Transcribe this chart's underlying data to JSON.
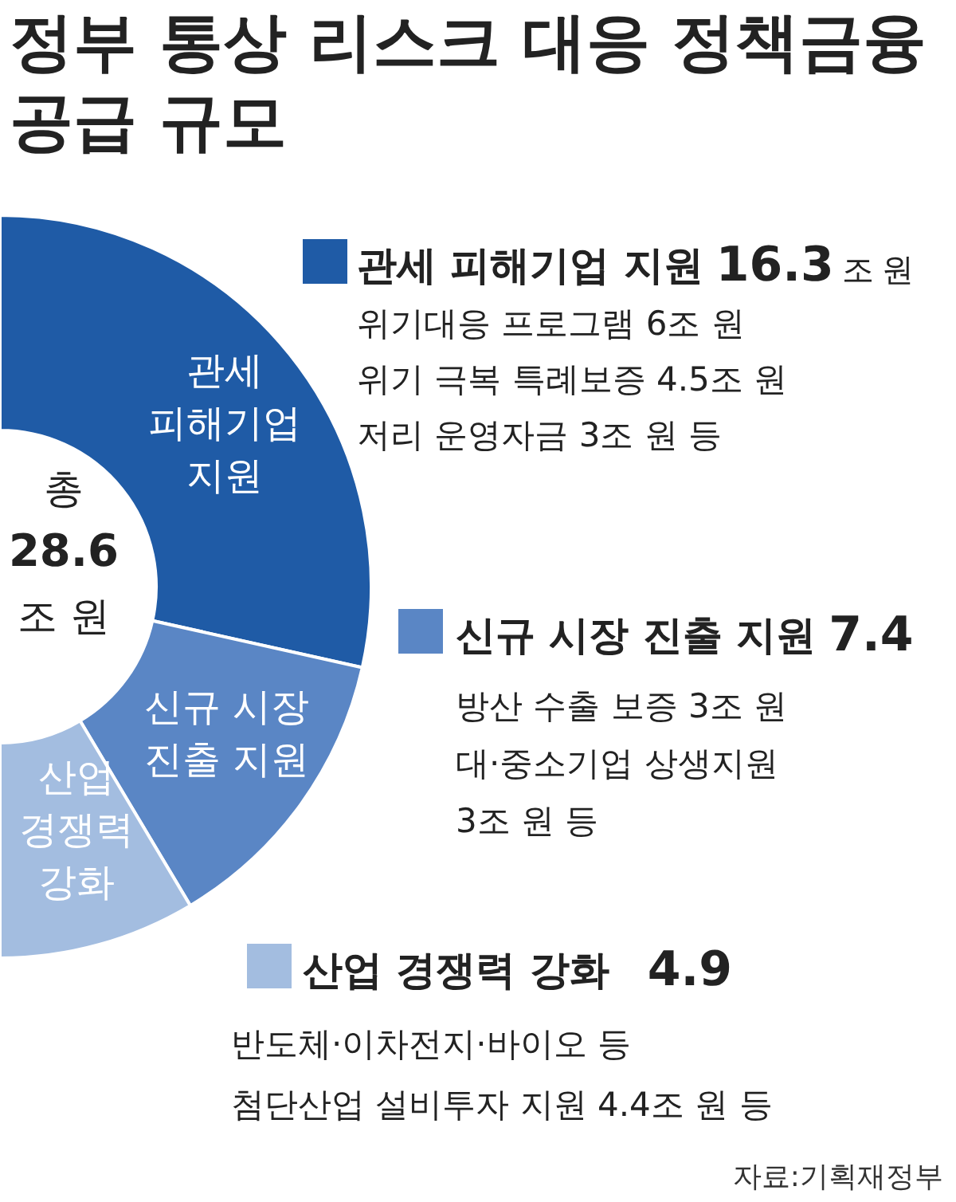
{
  "chart_data": {
    "type": "donut",
    "title": "정부 통상 리스크 대응 정책금융 공급 규모",
    "categories": [
      "관세 피해기업 지원",
      "신규 시장 진출 지원",
      "산업 경쟁력 강화"
    ],
    "values": [
      16.3,
      7.4,
      4.9
    ],
    "colors": [
      "#1f5ba6",
      "#5a86c5",
      "#a3bde0"
    ],
    "value_labels": [
      "16.3 조 원",
      "7.4",
      "4.9"
    ],
    "legend": "right",
    "annotations": [
      "위기대응 프로그램 6조 원\n위기 극복 특례보증 4.5조 원\n저리 운영자금 3조 원 등",
      "방산 수출 보증 3조 원\n대·중소기업 상생지원\n3조 원 등",
      "반도체·이차전지·바이오 등\n첨단산업 설비투자 지원 4.4조 원 등",
      "총 28.6 조 원",
      "자료:기획재정부"
    ]
  }
}
